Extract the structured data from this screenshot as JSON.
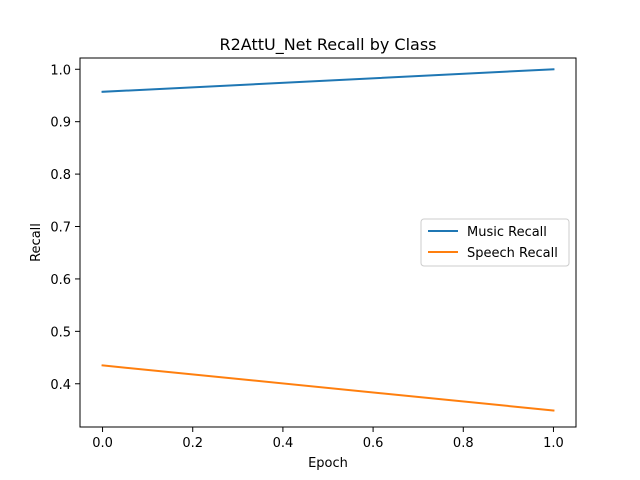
{
  "chart_data": {
    "type": "line",
    "title": "R2AttU_Net Recall by Class",
    "xlabel": "Epoch",
    "ylabel": "Recall",
    "x": [
      0.0,
      1.0
    ],
    "xlim": [
      -0.05,
      1.05
    ],
    "ylim": [
      0.3175,
      1.0215
    ],
    "xticks": [
      "0.0",
      "0.2",
      "0.4",
      "0.6",
      "0.8",
      "1.0"
    ],
    "yticks": [
      "0.4",
      "0.5",
      "0.6",
      "0.7",
      "0.8",
      "0.9",
      "1.0"
    ],
    "grid": false,
    "legend_position": "center-right",
    "series": [
      {
        "name": "Music Recall",
        "values": [
          0.957,
          1.0
        ],
        "color": "#1f77b4"
      },
      {
        "name": "Speech Recall",
        "values": [
          0.435,
          0.349
        ],
        "color": "#ff7f0e"
      }
    ]
  }
}
